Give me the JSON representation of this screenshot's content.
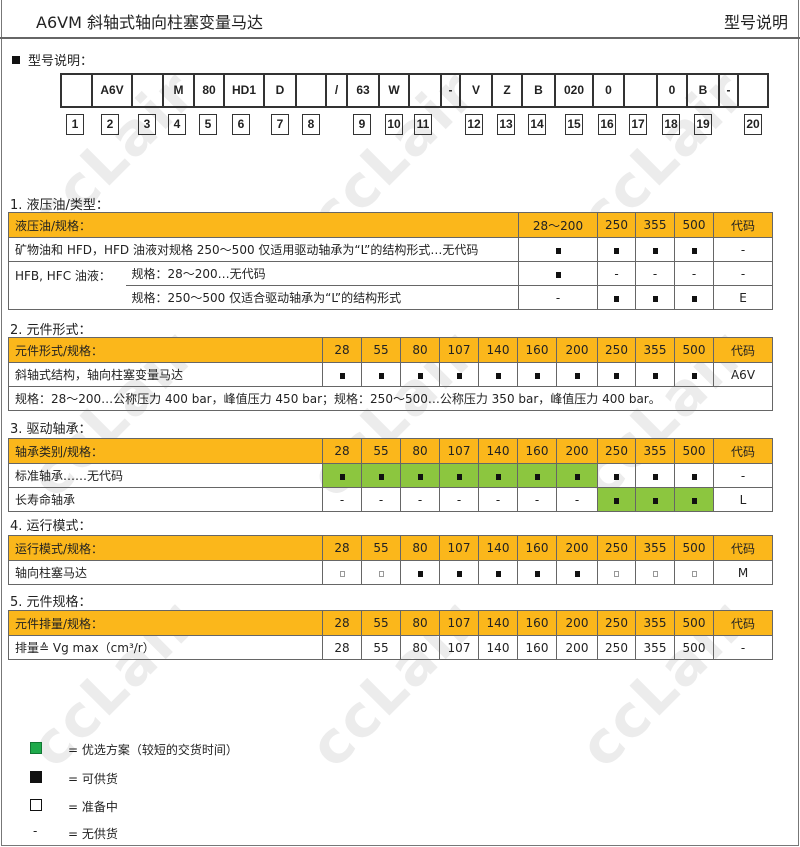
{
  "header": {
    "title": "A6VM 斜轴式轴向柱塞变量马达",
    "right": "型号说明"
  },
  "watermark": "ccLair",
  "model_heading": "型号说明：",
  "model_code": [
    "",
    "A6V",
    "",
    "M",
    "80",
    "HD1",
    "D",
    "",
    "/",
    "63",
    "W",
    "",
    "-",
    "V",
    "Z",
    "B",
    "020",
    "0",
    "",
    "0",
    "B",
    "-",
    ""
  ],
  "positions": [
    "1",
    "2",
    "3",
    "4",
    "5",
    "6",
    "7",
    "8",
    "9",
    "10",
    "11",
    "12",
    "13",
    "14",
    "15",
    "16",
    "17",
    "18",
    "19",
    "20"
  ],
  "sections": {
    "s1": {
      "title": "1.  液压油/类型：",
      "header": [
        "液压油/规格：",
        "28～200",
        "250",
        "355",
        "500",
        "代码"
      ],
      "row1": {
        "label": "矿物油和 HFD，HFD 油液对规格 250～500 仅适用驱动轴承为“L”的结构形式…无代码",
        "values": [
          "■",
          "■",
          "■",
          "■",
          "-"
        ]
      },
      "row2": {
        "group": "HFB, HFC 油液：",
        "label": "规格：28～200…无代码",
        "values": [
          "■",
          "-",
          "-",
          "-",
          "-"
        ]
      },
      "row3": {
        "label": "规格：250～500 仅适合驱动轴承为“L”的结构形式",
        "values": [
          "-",
          "■",
          "■",
          "■",
          "E"
        ]
      }
    },
    "sizes": [
      "28",
      "55",
      "80",
      "107",
      "140",
      "160",
      "200",
      "250",
      "355",
      "500"
    ],
    "code_label": "代码",
    "s2": {
      "title": "2.  元件形式：",
      "header": "元件形式/规格：",
      "rows": [
        {
          "label": "斜轴式结构，轴向柱塞变量马达",
          "values": [
            "■",
            "■",
            "■",
            "■",
            "■",
            "■",
            "■",
            "■",
            "■",
            "■"
          ],
          "code": "A6V"
        }
      ],
      "note": "规格：28～200…公称压力 400 bar，峰值压力 450 bar；规格：250～500…公称压力 350 bar，峰值压力 400 bar。"
    },
    "s3": {
      "title": "3.  驱动轴承：",
      "header": "轴承类别/规格：",
      "rows": [
        {
          "label": "标准轴承……无代码",
          "values": [
            "■",
            "■",
            "■",
            "■",
            "■",
            "■",
            "■",
            "■",
            "■",
            "■"
          ],
          "green": [
            1,
            1,
            1,
            1,
            1,
            1,
            1,
            0,
            0,
            0
          ],
          "code": "-"
        },
        {
          "label": "长寿命轴承",
          "values": [
            "-",
            "-",
            "-",
            "-",
            "-",
            "-",
            "-",
            "■",
            "■",
            "■"
          ],
          "green": [
            0,
            0,
            0,
            0,
            0,
            0,
            0,
            1,
            1,
            1
          ],
          "code": "L"
        }
      ]
    },
    "s4": {
      "title": "4.  运行模式：",
      "header": "运行模式/规格：",
      "rows": [
        {
          "label": "轴向柱塞马达",
          "values": [
            "□",
            "□",
            "■",
            "■",
            "■",
            "■",
            "■",
            "□",
            "□",
            "□"
          ],
          "code": "M"
        }
      ]
    },
    "s5": {
      "title": "5.  元件规格：",
      "header": "元件排量/规格：",
      "rows": [
        {
          "label": "排量≙ Vg max（cm³/r）",
          "values": [
            "28",
            "55",
            "80",
            "107",
            "140",
            "160",
            "200",
            "250",
            "355",
            "500"
          ],
          "code": "-"
        }
      ]
    }
  },
  "colors": {
    "header": "#fbb71b",
    "preferred": "#8cc63f"
  },
  "legend": [
    {
      "icon": "green-square",
      "text": "=  优选方案（较短的交货时间）"
    },
    {
      "icon": "filled-square",
      "text": "=  可供货"
    },
    {
      "icon": "empty-square",
      "text": "=  准备中"
    },
    {
      "icon": "dash",
      "text": "=  无供货"
    }
  ]
}
